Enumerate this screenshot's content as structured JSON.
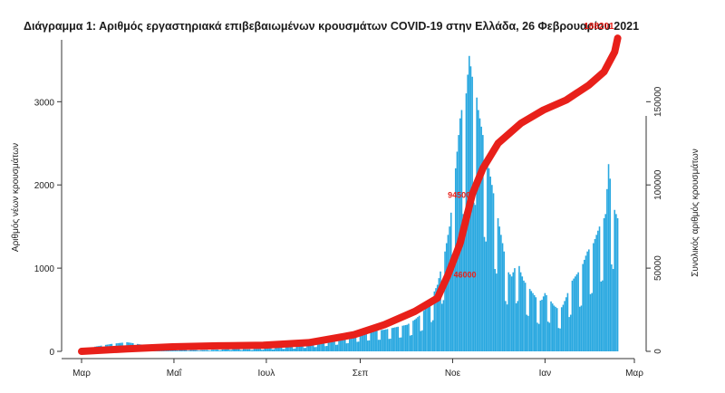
{
  "chart_data": {
    "type": "bar",
    "title": "Διάγραμμα 1: Αριθμός εργαστηριακά επιβεβαιωμένων κρουσμάτων COVID-19 στην Ελλάδα, 26 Φεβρουαρίου 2021",
    "ylabel": "Αριθμός νέων κρουσμάτων",
    "y2label": "Συνολικός αριθμός κρουσμάτων",
    "ylim": [
      0,
      3700
    ],
    "y2lim": [
      0,
      185000
    ],
    "yticks": [
      0,
      1000,
      2000,
      3000
    ],
    "y2ticks": [
      0,
      50000,
      100000,
      150000
    ],
    "xticks": [
      {
        "label": "Μαρ",
        "day": 0
      },
      {
        "label": "Μαΐ",
        "day": 61
      },
      {
        "label": "Ιουλ",
        "day": 122
      },
      {
        "label": "Σεπ",
        "day": 184
      },
      {
        "label": "Νοε",
        "day": 245
      },
      {
        "label": "Ιαν",
        "day": 306
      },
      {
        "label": "Μαρ",
        "day": 365
      }
    ],
    "grid": false,
    "series": [
      {
        "type": "bar",
        "color": "#29a8e0",
        "points": [
          [
            0,
            30
          ],
          [
            10,
            60
          ],
          [
            20,
            90
          ],
          [
            30,
            110
          ],
          [
            40,
            80
          ],
          [
            50,
            40
          ],
          [
            60,
            20
          ],
          [
            70,
            15
          ],
          [
            80,
            15
          ],
          [
            90,
            20
          ],
          [
            100,
            30
          ],
          [
            110,
            25
          ],
          [
            120,
            35
          ],
          [
            130,
            50
          ],
          [
            140,
            60
          ],
          [
            150,
            80
          ],
          [
            160,
            110
          ],
          [
            170,
            150
          ],
          [
            180,
            200
          ],
          [
            190,
            240
          ],
          [
            200,
            260
          ],
          [
            210,
            300
          ],
          [
            215,
            320
          ],
          [
            220,
            380
          ],
          [
            225,
            460
          ],
          [
            230,
            600
          ],
          [
            235,
            800
          ],
          [
            240,
            1200
          ],
          [
            243,
            1500
          ],
          [
            246,
            2000
          ],
          [
            248,
            2400
          ],
          [
            250,
            2800
          ],
          [
            252,
            3000
          ],
          [
            254,
            3100
          ],
          [
            256,
            3550
          ],
          [
            258,
            3300
          ],
          [
            260,
            3200
          ],
          [
            262,
            2900
          ],
          [
            264,
            2700
          ],
          [
            266,
            2500
          ],
          [
            268,
            2300
          ],
          [
            270,
            2100
          ],
          [
            272,
            1900
          ],
          [
            274,
            1700
          ],
          [
            276,
            1500
          ],
          [
            278,
            1300
          ],
          [
            280,
            1100
          ],
          [
            282,
            950
          ],
          [
            284,
            900
          ],
          [
            286,
            1000
          ],
          [
            288,
            1100
          ],
          [
            290,
            950
          ],
          [
            292,
            850
          ],
          [
            294,
            800
          ],
          [
            296,
            750
          ],
          [
            298,
            700
          ],
          [
            300,
            650
          ],
          [
            302,
            600
          ],
          [
            304,
            620
          ],
          [
            306,
            700
          ],
          [
            308,
            650
          ],
          [
            310,
            600
          ],
          [
            312,
            550
          ],
          [
            314,
            520
          ],
          [
            316,
            500
          ],
          [
            318,
            560
          ],
          [
            320,
            650
          ],
          [
            322,
            750
          ],
          [
            324,
            850
          ],
          [
            326,
            900
          ],
          [
            328,
            950
          ],
          [
            330,
            1000
          ],
          [
            332,
            1100
          ],
          [
            334,
            1200
          ],
          [
            336,
            1250
          ],
          [
            338,
            1300
          ],
          [
            340,
            1400
          ],
          [
            342,
            1500
          ],
          [
            344,
            1550
          ],
          [
            346,
            1650
          ],
          [
            348,
            2250
          ],
          [
            350,
            1900
          ],
          [
            352,
            1700
          ],
          [
            354,
            1600
          ]
        ]
      },
      {
        "type": "line",
        "color": "#e8201a",
        "points": [
          [
            0,
            0
          ],
          [
            30,
            1500
          ],
          [
            60,
            2700
          ],
          [
            90,
            3300
          ],
          [
            120,
            3700
          ],
          [
            150,
            5200
          ],
          [
            180,
            10000
          ],
          [
            200,
            16000
          ],
          [
            220,
            24000
          ],
          [
            235,
            32000
          ],
          [
            242,
            46000
          ],
          [
            250,
            65000
          ],
          [
            258,
            94500
          ],
          [
            265,
            110000
          ],
          [
            275,
            125000
          ],
          [
            290,
            137000
          ],
          [
            305,
            145000
          ],
          [
            320,
            151000
          ],
          [
            335,
            160000
          ],
          [
            345,
            168000
          ],
          [
            352,
            180000
          ],
          [
            354,
            188201
          ]
        ]
      }
    ],
    "annotations": [
      "188201",
      "94500",
      "46000"
    ]
  }
}
